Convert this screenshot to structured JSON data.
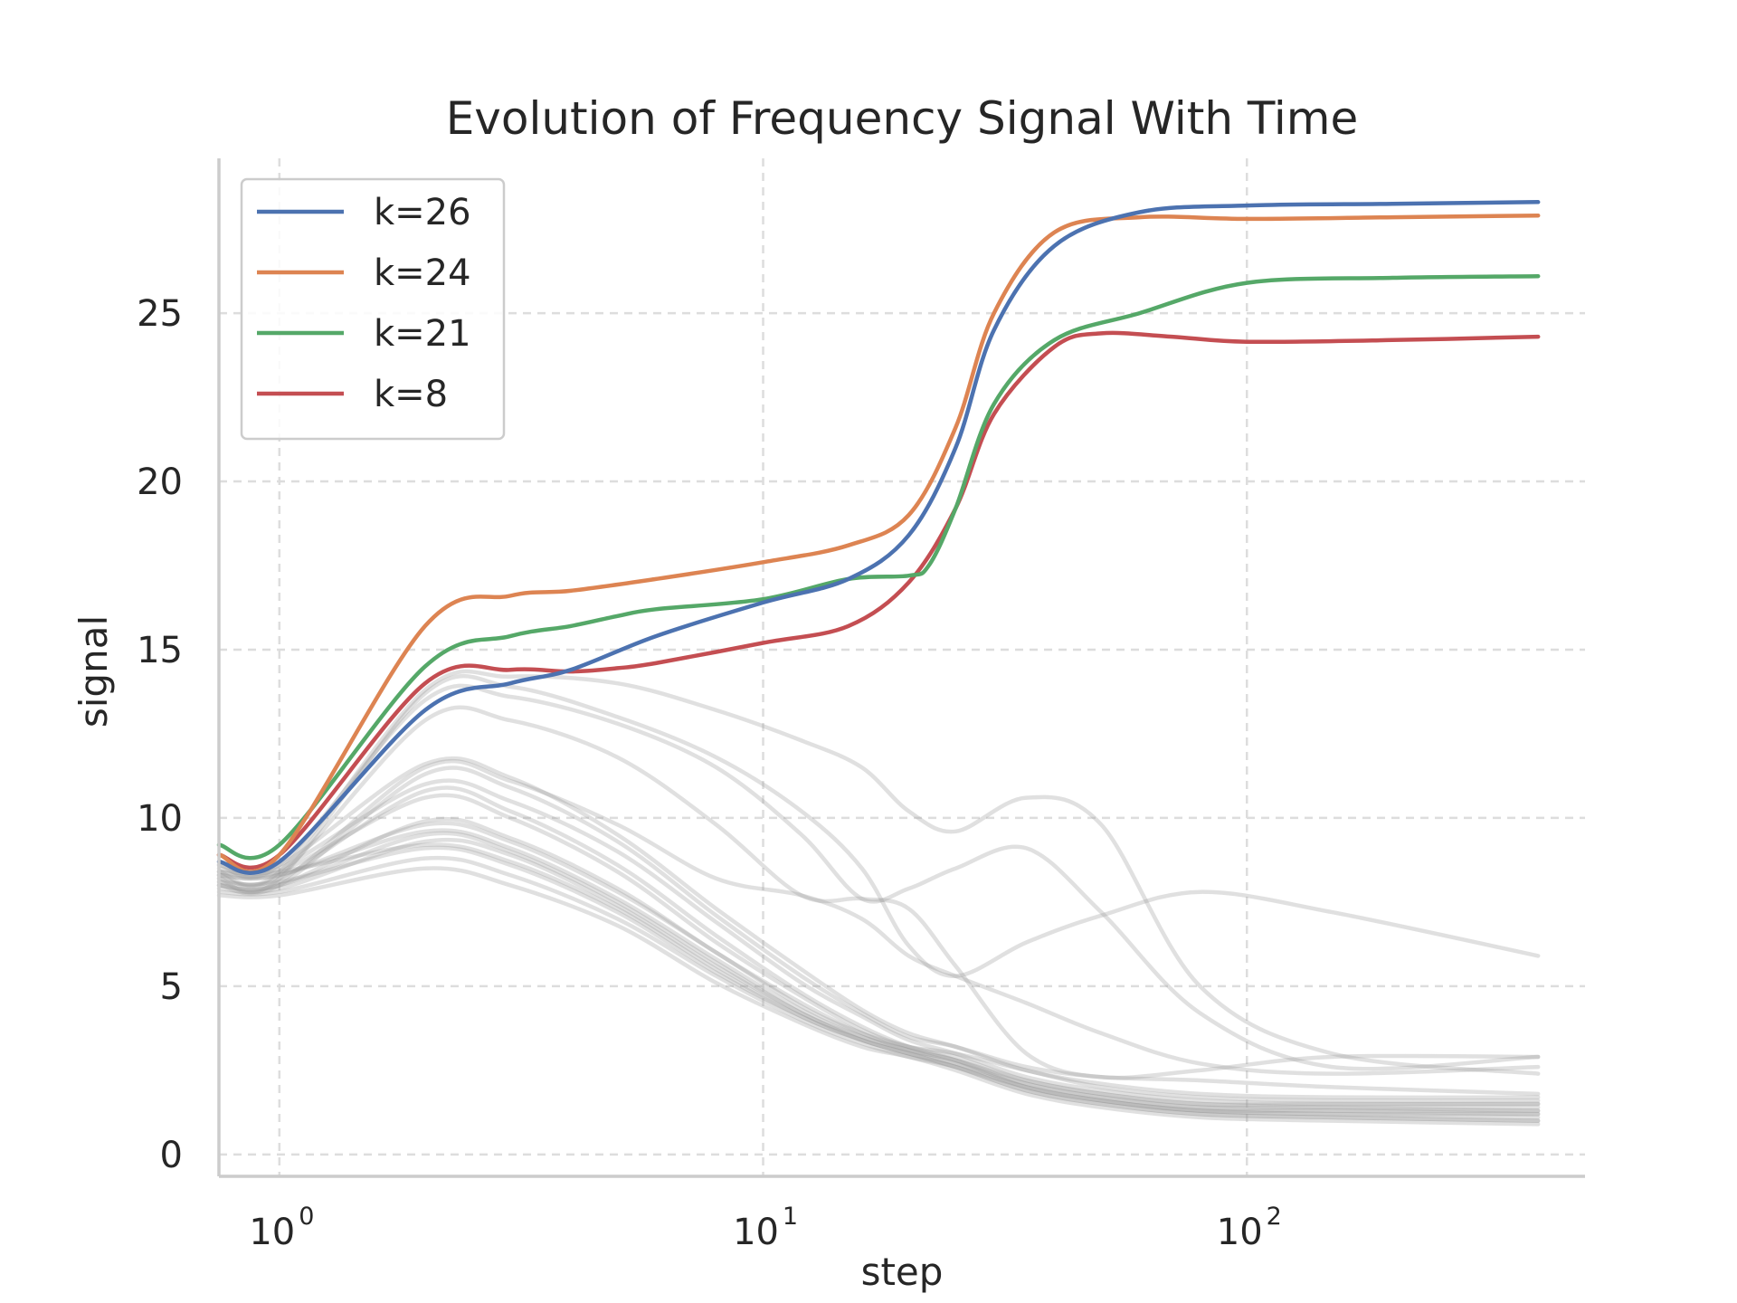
{
  "chart_data": {
    "type": "line",
    "title": "Evolution of Frequency Signal With Time",
    "xlabel": "step",
    "ylabel": "signal",
    "x_scale": "log",
    "xlim": [
      0.75,
      500
    ],
    "ylim": [
      -0.65,
      29.6
    ],
    "grid": true,
    "legend_position": "top-left",
    "x_ticks": [
      {
        "value": 1,
        "base": "10",
        "exp": "0"
      },
      {
        "value": 10,
        "base": "10",
        "exp": "1"
      },
      {
        "value": 100,
        "base": "10",
        "exp": "2"
      }
    ],
    "y_ticks": [
      0,
      5,
      10,
      15,
      20,
      25
    ],
    "colors": {
      "background_series": "#999999"
    },
    "series": [
      {
        "name": "k=26",
        "color": "#4c72b0",
        "x": [
          0.75,
          1,
          2,
          3,
          4,
          6,
          10,
          15,
          20,
          25,
          30,
          40,
          60,
          100,
          200,
          400
        ],
        "y": [
          8.7,
          8.7,
          13.2,
          14.0,
          14.4,
          15.4,
          16.4,
          17.1,
          18.4,
          21.0,
          24.5,
          27.0,
          28.0,
          28.2,
          28.25,
          28.3
        ]
      },
      {
        "name": "k=24",
        "color": "#dd8452",
        "x": [
          0.75,
          1,
          2,
          3,
          4,
          6,
          10,
          15,
          20,
          25,
          30,
          40,
          60,
          100,
          200,
          400
        ],
        "y": [
          8.9,
          8.9,
          15.7,
          16.6,
          16.75,
          17.1,
          17.6,
          18.1,
          19.0,
          21.6,
          25.0,
          27.4,
          27.85,
          27.8,
          27.85,
          27.9
        ]
      },
      {
        "name": "k=21",
        "color": "#55a868",
        "x": [
          0.75,
          1,
          2,
          3,
          4,
          5,
          6,
          10,
          15,
          20,
          22,
          25,
          30,
          40,
          60,
          100,
          200,
          400
        ],
        "y": [
          9.2,
          9.2,
          14.5,
          15.4,
          15.7,
          16.0,
          16.2,
          16.5,
          17.1,
          17.2,
          17.5,
          19.2,
          22.3,
          24.2,
          25.0,
          25.9,
          26.05,
          26.1
        ]
      },
      {
        "name": "k=8",
        "color": "#c44e52",
        "x": [
          0.75,
          1,
          2,
          3,
          4,
          5,
          6,
          10,
          15,
          20,
          25,
          30,
          40,
          50,
          70,
          100,
          200,
          400
        ],
        "y": [
          8.9,
          8.9,
          14.0,
          14.4,
          14.35,
          14.45,
          14.6,
          15.2,
          15.7,
          17.0,
          19.2,
          22.0,
          24.0,
          24.4,
          24.3,
          24.15,
          24.2,
          24.3
        ]
      }
    ],
    "background_series": [
      {
        "x": [
          0.75,
          1,
          2,
          3,
          5,
          8,
          12,
          16,
          20,
          25,
          35,
          50,
          80,
          150,
          400
        ],
        "y": [
          8.4,
          8.4,
          13.8,
          14.2,
          14.0,
          13.2,
          12.3,
          11.5,
          10.2,
          9.6,
          10.6,
          9.8,
          5.0,
          3.0,
          2.4
        ]
      },
      {
        "x": [
          0.75,
          1,
          2,
          3,
          5,
          8,
          12,
          16,
          20,
          25,
          35,
          50,
          80,
          150,
          400
        ],
        "y": [
          8.2,
          8.2,
          13.7,
          13.9,
          13.0,
          11.8,
          10.2,
          8.5,
          6.2,
          5.3,
          6.3,
          7.1,
          7.8,
          7.2,
          5.9
        ]
      },
      {
        "x": [
          0.75,
          1,
          2,
          3,
          5,
          8,
          12,
          16,
          20,
          25,
          35,
          50,
          80,
          150,
          400
        ],
        "y": [
          8.6,
          8.6,
          13.5,
          13.6,
          12.8,
          11.5,
          9.5,
          7.6,
          7.9,
          8.5,
          9.1,
          7.2,
          4.2,
          2.6,
          2.9
        ]
      },
      {
        "x": [
          0.75,
          1,
          2,
          3,
          5,
          8,
          12,
          16,
          20,
          25,
          35,
          50,
          80,
          150,
          400
        ],
        "y": [
          8.3,
          8.3,
          12.9,
          12.9,
          11.8,
          9.8,
          7.7,
          7.6,
          7.3,
          5.6,
          3.0,
          2.3,
          2.5,
          2.9,
          2.9
        ]
      },
      {
        "x": [
          0.75,
          1,
          2,
          3,
          5,
          8,
          12,
          16,
          20,
          25,
          35,
          50,
          80,
          150,
          400
        ],
        "y": [
          8.1,
          8.1,
          11.5,
          11.1,
          9.8,
          8.2,
          7.7,
          7.0,
          5.9,
          5.3,
          4.5,
          3.6,
          2.7,
          2.4,
          2.6
        ]
      },
      {
        "x": [
          0.75,
          1,
          2,
          3,
          5,
          8,
          12,
          16,
          20,
          25,
          35,
          50,
          80,
          150,
          400
        ],
        "y": [
          8.0,
          8.0,
          11.3,
          10.9,
          9.3,
          7.1,
          5.3,
          4.2,
          3.5,
          3.2,
          2.6,
          2.3,
          2.2,
          2.0,
          1.8
        ]
      },
      {
        "x": [
          0.75,
          1,
          2,
          3,
          5,
          8,
          12,
          16,
          20,
          25,
          35,
          50,
          80,
          150,
          400
        ],
        "y": [
          8.5,
          8.5,
          11.0,
          10.5,
          9.0,
          6.9,
          5.1,
          4.1,
          3.4,
          3.0,
          2.3,
          1.9,
          1.6,
          1.5,
          1.5
        ]
      },
      {
        "x": [
          0.75,
          1,
          2,
          3,
          5,
          8,
          12,
          16,
          20,
          25,
          35,
          50,
          80,
          150,
          400
        ],
        "y": [
          8.2,
          8.2,
          10.8,
          10.2,
          8.6,
          6.5,
          4.8,
          3.8,
          3.2,
          2.8,
          2.0,
          1.6,
          1.3,
          1.2,
          1.1
        ]
      },
      {
        "x": [
          0.75,
          1,
          2,
          3,
          5,
          8,
          12,
          16,
          20,
          25,
          35,
          50,
          80,
          150,
          400
        ],
        "y": [
          8.4,
          8.4,
          10.6,
          10.0,
          8.4,
          6.3,
          4.7,
          3.7,
          3.2,
          2.9,
          2.2,
          1.8,
          1.5,
          1.4,
          1.3
        ]
      },
      {
        "x": [
          0.75,
          1,
          2,
          3,
          5,
          8,
          12,
          16,
          20,
          25,
          35,
          50,
          80,
          150,
          400
        ],
        "y": [
          8.0,
          8.0,
          9.9,
          9.4,
          7.9,
          6.0,
          4.5,
          3.6,
          3.1,
          2.8,
          2.1,
          1.7,
          1.4,
          1.3,
          1.3
        ]
      },
      {
        "x": [
          0.75,
          1,
          2,
          3,
          5,
          8,
          12,
          16,
          20,
          25,
          35,
          50,
          80,
          150,
          400
        ],
        "y": [
          8.3,
          8.3,
          9.6,
          9.1,
          7.6,
          5.8,
          4.3,
          3.5,
          3.1,
          2.7,
          2.0,
          1.6,
          1.3,
          1.2,
          1.2
        ]
      },
      {
        "x": [
          0.75,
          1,
          2,
          3,
          5,
          8,
          12,
          16,
          20,
          25,
          35,
          50,
          80,
          150,
          400
        ],
        "y": [
          7.9,
          7.9,
          9.3,
          8.9,
          7.4,
          5.6,
          4.2,
          3.4,
          3.0,
          2.6,
          1.9,
          1.5,
          1.2,
          1.1,
          1.0
        ]
      },
      {
        "x": [
          0.75,
          1,
          2,
          3,
          5,
          8,
          12,
          16,
          20,
          25,
          35,
          50,
          80,
          150,
          400
        ],
        "y": [
          8.1,
          8.1,
          9.1,
          8.6,
          7.2,
          5.4,
          4.1,
          3.4,
          3.0,
          2.7,
          2.1,
          1.7,
          1.4,
          1.4,
          1.4
        ]
      },
      {
        "x": [
          0.75,
          1,
          2,
          3,
          5,
          8,
          12,
          16,
          20,
          25,
          35,
          50,
          80,
          150,
          400
        ],
        "y": [
          7.8,
          7.8,
          8.8,
          8.3,
          7.0,
          5.3,
          4.0,
          3.3,
          2.9,
          2.6,
          1.9,
          1.5,
          1.2,
          1.1,
          1.0
        ]
      },
      {
        "x": [
          0.75,
          1,
          2,
          3,
          5,
          8,
          12,
          16,
          20,
          25,
          35,
          50,
          80,
          150,
          400
        ],
        "y": [
          7.7,
          7.7,
          8.5,
          8.0,
          6.8,
          5.1,
          3.9,
          3.2,
          2.9,
          2.5,
          1.8,
          1.4,
          1.1,
          1.0,
          0.9
        ]
      },
      {
        "x": [
          0.75,
          1,
          2,
          3,
          5,
          8,
          12,
          16,
          20,
          25,
          35,
          50,
          80,
          150,
          400
        ],
        "y": [
          8.3,
          8.3,
          9.8,
          9.3,
          7.8,
          6.0,
          4.4,
          3.6,
          3.2,
          3.0,
          2.5,
          2.0,
          1.7,
          1.6,
          1.6
        ]
      },
      {
        "x": [
          0.75,
          1,
          2,
          3,
          5,
          8,
          12,
          16,
          20,
          25,
          35,
          50,
          80,
          150,
          400
        ],
        "y": [
          8.6,
          8.6,
          11.6,
          11.2,
          9.5,
          7.3,
          5.5,
          4.3,
          3.6,
          3.2,
          2.5,
          2.1,
          1.8,
          1.7,
          1.7
        ]
      },
      {
        "x": [
          0.75,
          1,
          2,
          3,
          5,
          8,
          12,
          16,
          20,
          25,
          35,
          50,
          80,
          150,
          400
        ],
        "y": [
          8.0,
          8.0,
          9.5,
          9.0,
          7.5,
          5.7,
          4.2,
          3.5,
          3.1,
          2.8,
          2.2,
          1.8,
          1.5,
          1.5,
          1.5
        ]
      },
      {
        "x": [
          0.75,
          1,
          2,
          3,
          5,
          8,
          12,
          16,
          20,
          25,
          35,
          50,
          80,
          150,
          400
        ],
        "y": [
          8.4,
          8.4,
          9.2,
          8.7,
          7.3,
          5.5,
          4.1,
          3.4,
          3.0,
          2.6,
          2.0,
          1.6,
          1.3,
          1.3,
          1.2
        ]
      }
    ]
  }
}
